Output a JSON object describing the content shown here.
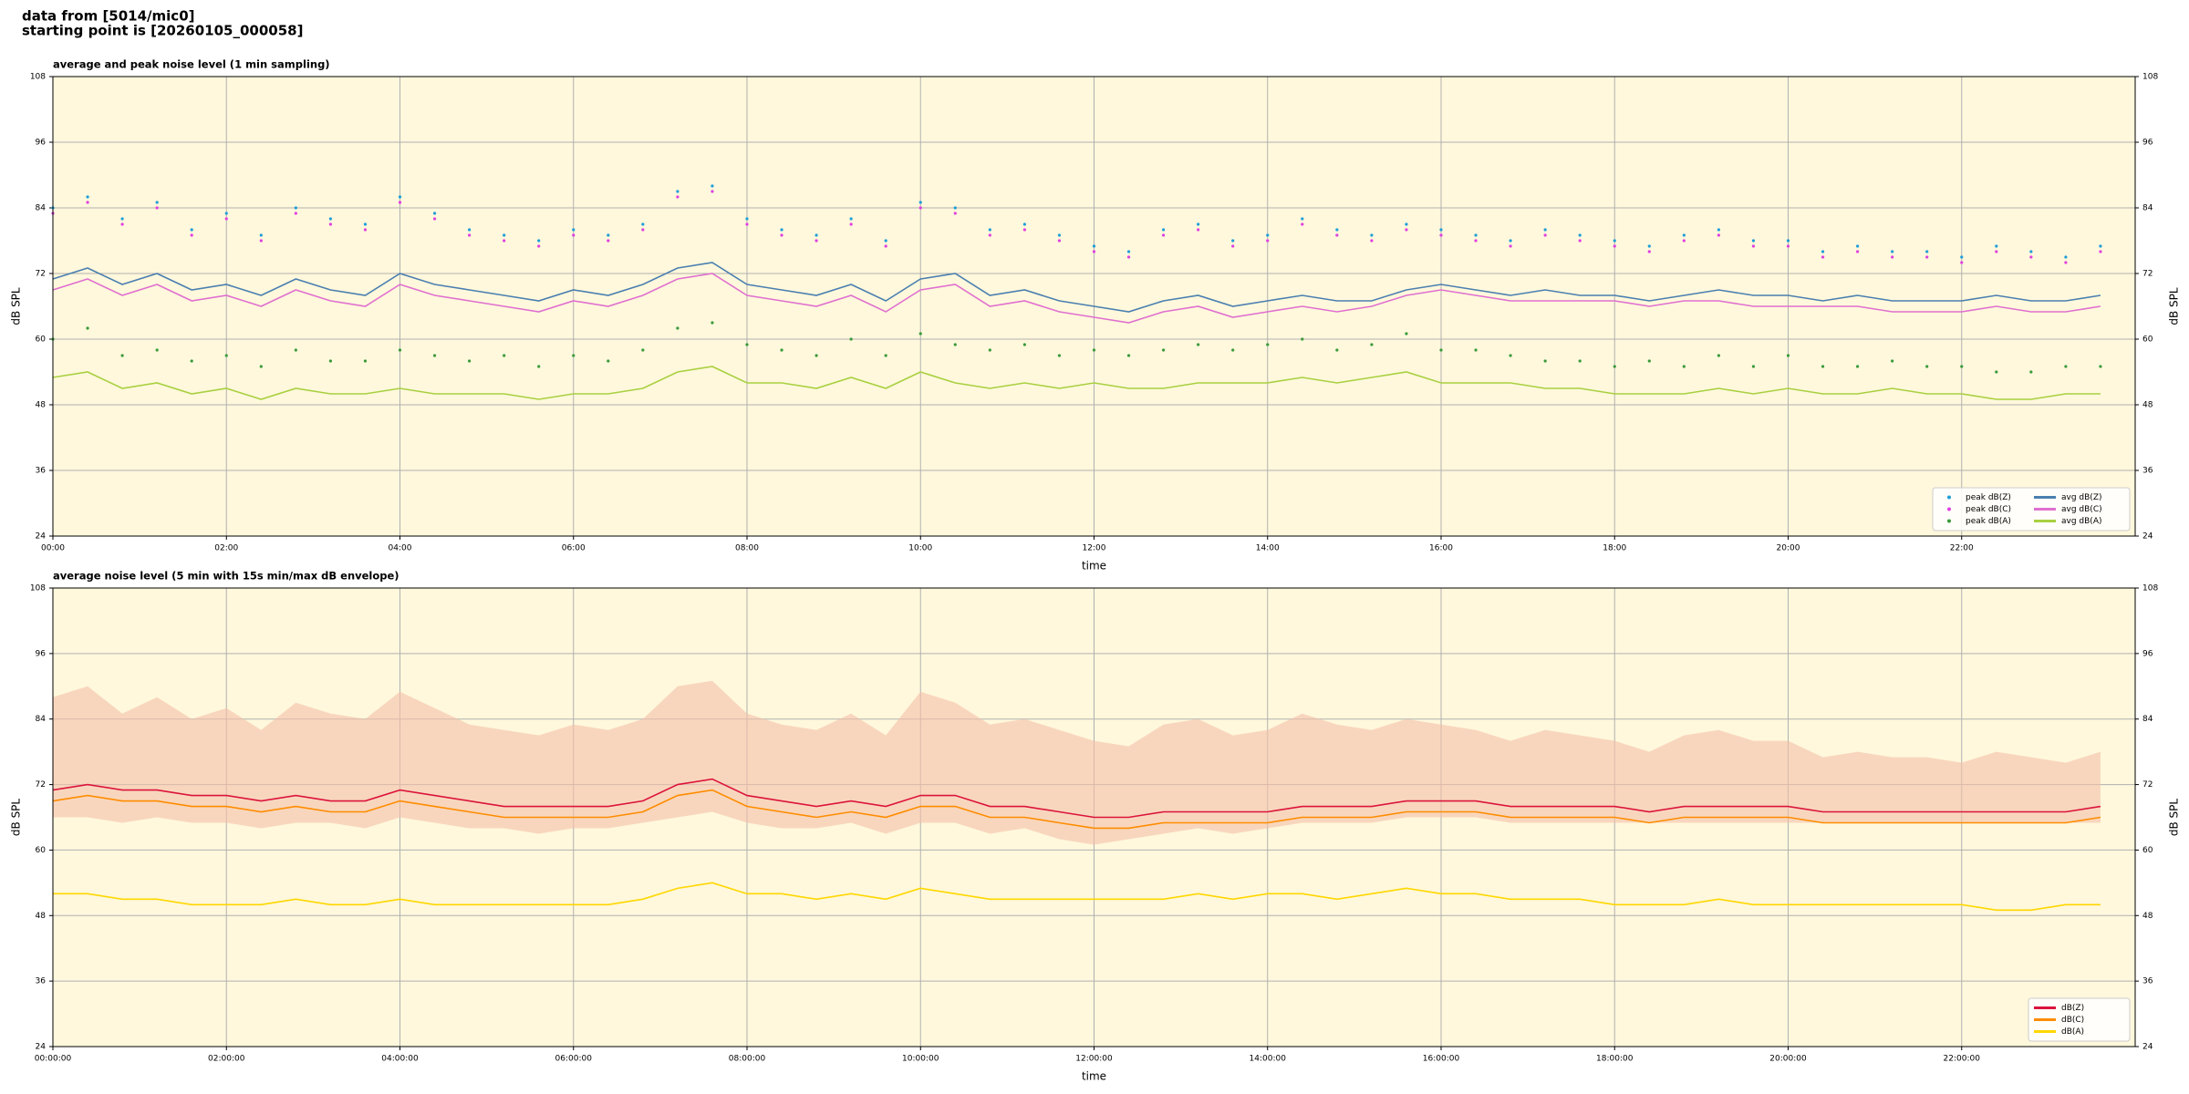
{
  "header": [
    "data from [5014/mic0]",
    "starting point is [20260105_000058]"
  ],
  "chart_data": [
    {
      "type": "line",
      "title": "average and peak noise level (1 min sampling)",
      "xlabel": "time",
      "ylabel": "dB SPL",
      "xlim": [
        0,
        24
      ],
      "ylim": [
        24,
        108
      ],
      "yticks": [
        24,
        36,
        48,
        60,
        72,
        84,
        96,
        108
      ],
      "xticks": [
        {
          "value": 0,
          "label": "00:00"
        },
        {
          "value": 2,
          "label": "02:00"
        },
        {
          "value": 4,
          "label": "04:00"
        },
        {
          "value": 6,
          "label": "06:00"
        },
        {
          "value": 8,
          "label": "08:00"
        },
        {
          "value": 10,
          "label": "10:00"
        },
        {
          "value": 12,
          "label": "12:00"
        },
        {
          "value": 14,
          "label": "14:00"
        },
        {
          "value": 16,
          "label": "16:00"
        },
        {
          "value": 18,
          "label": "18:00"
        },
        {
          "value": 20,
          "label": "20:00"
        },
        {
          "value": 22,
          "label": "22:00"
        }
      ],
      "grid": true,
      "legend": "lower right",
      "legend_columns": 2,
      "x": [
        0,
        0.4,
        0.8,
        1.2,
        1.6,
        2,
        2.4,
        2.8,
        3.2,
        3.6,
        4,
        4.4,
        4.8,
        5.2,
        5.6,
        6,
        6.4,
        6.8,
        7.2,
        7.6,
        8,
        8.4,
        8.8,
        9.2,
        9.6,
        10,
        10.4,
        10.8,
        11.2,
        11.6,
        12,
        12.4,
        12.8,
        13.2,
        13.6,
        14,
        14.4,
        14.8,
        15.2,
        15.6,
        16,
        16.4,
        16.8,
        17.2,
        17.6,
        18,
        18.4,
        18.8,
        19.2,
        19.6,
        20,
        20.4,
        20.8,
        21.2,
        21.6,
        22,
        22.4,
        22.8,
        23.2,
        23.6
      ],
      "series": [
        {
          "name": "peak dB(Z)",
          "type": "scatter",
          "color": "#1f9ed8",
          "values": [
            84,
            86,
            82,
            85,
            80,
            83,
            79,
            84,
            82,
            81,
            86,
            83,
            80,
            79,
            78,
            80,
            79,
            81,
            87,
            88,
            82,
            80,
            79,
            82,
            78,
            85,
            84,
            80,
            81,
            79,
            77,
            76,
            80,
            81,
            78,
            79,
            82,
            80,
            79,
            81,
            80,
            79,
            78,
            80,
            79,
            78,
            77,
            79,
            80,
            78,
            78,
            76,
            77,
            76,
            76,
            75,
            77,
            76,
            75,
            77
          ]
        },
        {
          "name": "peak dB(C)",
          "type": "scatter",
          "color": "#e040e0",
          "values": [
            83,
            85,
            81,
            84,
            79,
            82,
            78,
            83,
            81,
            80,
            85,
            82,
            79,
            78,
            77,
            79,
            78,
            80,
            86,
            87,
            81,
            79,
            78,
            81,
            77,
            84,
            83,
            79,
            80,
            78,
            76,
            75,
            79,
            80,
            77,
            78,
            81,
            79,
            78,
            80,
            79,
            78,
            77,
            79,
            78,
            77,
            76,
            78,
            79,
            77,
            77,
            75,
            76,
            75,
            75,
            74,
            76,
            75,
            74,
            76
          ]
        },
        {
          "name": "peak dB(A)",
          "type": "scatter",
          "color": "#3a9a3a",
          "values": [
            60,
            62,
            57,
            58,
            56,
            57,
            55,
            58,
            56,
            56,
            58,
            57,
            56,
            57,
            55,
            57,
            56,
            58,
            62,
            63,
            59,
            58,
            57,
            60,
            57,
            61,
            59,
            58,
            59,
            57,
            58,
            57,
            58,
            59,
            58,
            59,
            60,
            58,
            59,
            61,
            58,
            58,
            57,
            56,
            56,
            55,
            56,
            55,
            57,
            55,
            57,
            55,
            55,
            56,
            55,
            55,
            54,
            54,
            55,
            55
          ]
        },
        {
          "name": "avg dB(Z)",
          "type": "line",
          "color": "#4a7fb0",
          "values": [
            71,
            73,
            70,
            72,
            69,
            70,
            68,
            71,
            69,
            68,
            72,
            70,
            69,
            68,
            67,
            69,
            68,
            70,
            73,
            74,
            70,
            69,
            68,
            70,
            67,
            71,
            72,
            68,
            69,
            67,
            66,
            65,
            67,
            68,
            66,
            67,
            68,
            67,
            67,
            69,
            70,
            69,
            68,
            69,
            68,
            68,
            67,
            68,
            69,
            68,
            68,
            67,
            68,
            67,
            67,
            67,
            68,
            67,
            67,
            68
          ]
        },
        {
          "name": "avg dB(C)",
          "type": "line",
          "color": "#e070d0",
          "values": [
            69,
            71,
            68,
            70,
            67,
            68,
            66,
            69,
            67,
            66,
            70,
            68,
            67,
            66,
            65,
            67,
            66,
            68,
            71,
            72,
            68,
            67,
            66,
            68,
            65,
            69,
            70,
            66,
            67,
            65,
            64,
            63,
            65,
            66,
            64,
            65,
            66,
            65,
            66,
            68,
            69,
            68,
            67,
            67,
            67,
            67,
            66,
            67,
            67,
            66,
            66,
            66,
            66,
            65,
            65,
            65,
            66,
            65,
            65,
            66
          ]
        },
        {
          "name": "avg dB(A)",
          "type": "line",
          "color": "#a8d040",
          "values": [
            53,
            54,
            51,
            52,
            50,
            51,
            49,
            51,
            50,
            50,
            51,
            50,
            50,
            50,
            49,
            50,
            50,
            51,
            54,
            55,
            52,
            52,
            51,
            53,
            51,
            54,
            52,
            51,
            52,
            51,
            52,
            51,
            51,
            52,
            52,
            52,
            53,
            52,
            53,
            54,
            52,
            52,
            52,
            51,
            51,
            50,
            50,
            50,
            51,
            50,
            51,
            50,
            50,
            51,
            50,
            50,
            49,
            49,
            50,
            50
          ]
        }
      ]
    },
    {
      "type": "line",
      "title": "average noise level (5 min with 15s min/max dB envelope)",
      "xlabel": "time",
      "ylabel": "dB SPL",
      "xlim": [
        0,
        24
      ],
      "ylim": [
        24,
        108
      ],
      "yticks": [
        24,
        36,
        48,
        60,
        72,
        84,
        96,
        108
      ],
      "xticks": [
        {
          "value": 0,
          "label": "00:00:00"
        },
        {
          "value": 2,
          "label": "02:00:00"
        },
        {
          "value": 4,
          "label": "04:00:00"
        },
        {
          "value": 6,
          "label": "06:00:00"
        },
        {
          "value": 8,
          "label": "08:00:00"
        },
        {
          "value": 10,
          "label": "10:00:00"
        },
        {
          "value": 12,
          "label": "12:00:00"
        },
        {
          "value": 14,
          "label": "14:00:00"
        },
        {
          "value": 16,
          "label": "16:00:00"
        },
        {
          "value": 18,
          "label": "18:00:00"
        },
        {
          "value": 20,
          "label": "20:00:00"
        },
        {
          "value": 22,
          "label": "22:00:00"
        }
      ],
      "grid": true,
      "legend": "lower right",
      "legend_columns": 1,
      "x": [
        0,
        0.4,
        0.8,
        1.2,
        1.6,
        2,
        2.4,
        2.8,
        3.2,
        3.6,
        4,
        4.4,
        4.8,
        5.2,
        5.6,
        6,
        6.4,
        6.8,
        7.2,
        7.6,
        8,
        8.4,
        8.8,
        9.2,
        9.6,
        10,
        10.4,
        10.8,
        11.2,
        11.6,
        12,
        12.4,
        12.8,
        13.2,
        13.6,
        14,
        14.4,
        14.8,
        15.2,
        15.6,
        16,
        16.4,
        16.8,
        17.2,
        17.6,
        18,
        18.4,
        18.8,
        19.2,
        19.6,
        20,
        20.4,
        20.8,
        21.2,
        21.6,
        22,
        22.4,
        22.8,
        23.2,
        23.6
      ],
      "envelope": {
        "color": "#f4c0a8",
        "low": [
          66,
          66,
          65,
          66,
          65,
          65,
          64,
          65,
          65,
          64,
          66,
          65,
          64,
          64,
          63,
          64,
          64,
          65,
          66,
          67,
          65,
          64,
          64,
          65,
          63,
          65,
          65,
          63,
          64,
          62,
          61,
          62,
          63,
          64,
          63,
          64,
          65,
          65,
          65,
          66,
          66,
          66,
          65,
          65,
          65,
          65,
          65,
          65,
          65,
          65,
          65,
          65,
          65,
          65,
          65,
          65,
          65,
          65,
          65,
          65
        ],
        "high": [
          88,
          90,
          85,
          88,
          84,
          86,
          82,
          87,
          85,
          84,
          89,
          86,
          83,
          82,
          81,
          83,
          82,
          84,
          90,
          91,
          85,
          83,
          82,
          85,
          81,
          89,
          87,
          83,
          84,
          82,
          80,
          79,
          83,
          84,
          81,
          82,
          85,
          83,
          82,
          84,
          83,
          82,
          80,
          82,
          81,
          80,
          78,
          81,
          82,
          80,
          80,
          77,
          78,
          77,
          77,
          76,
          78,
          77,
          76,
          78
        ]
      },
      "series": [
        {
          "name": "dB(Z)",
          "type": "line",
          "color": "#dc143c",
          "values": [
            71,
            72,
            71,
            71,
            70,
            70,
            69,
            70,
            69,
            69,
            71,
            70,
            69,
            68,
            68,
            68,
            68,
            69,
            72,
            73,
            70,
            69,
            68,
            69,
            68,
            70,
            70,
            68,
            68,
            67,
            66,
            66,
            67,
            67,
            67,
            67,
            68,
            68,
            68,
            69,
            69,
            69,
            68,
            68,
            68,
            68,
            67,
            68,
            68,
            68,
            68,
            67,
            67,
            67,
            67,
            67,
            67,
            67,
            67,
            68
          ]
        },
        {
          "name": "dB(C)",
          "type": "line",
          "color": "#ff8c00",
          "values": [
            69,
            70,
            69,
            69,
            68,
            68,
            67,
            68,
            67,
            67,
            69,
            68,
            67,
            66,
            66,
            66,
            66,
            67,
            70,
            71,
            68,
            67,
            66,
            67,
            66,
            68,
            68,
            66,
            66,
            65,
            64,
            64,
            65,
            65,
            65,
            65,
            66,
            66,
            66,
            67,
            67,
            67,
            66,
            66,
            66,
            66,
            65,
            66,
            66,
            66,
            66,
            65,
            65,
            65,
            65,
            65,
            65,
            65,
            65,
            66
          ]
        },
        {
          "name": "dB(A)",
          "type": "line",
          "color": "#ffd700",
          "values": [
            52,
            52,
            51,
            51,
            50,
            50,
            50,
            51,
            50,
            50,
            51,
            50,
            50,
            50,
            50,
            50,
            50,
            51,
            53,
            54,
            52,
            52,
            51,
            52,
            51,
            53,
            52,
            51,
            51,
            51,
            51,
            51,
            51,
            52,
            51,
            52,
            52,
            51,
            52,
            53,
            52,
            52,
            51,
            51,
            51,
            50,
            50,
            50,
            51,
            50,
            50,
            50,
            50,
            50,
            50,
            50,
            49,
            49,
            50,
            50
          ]
        }
      ]
    }
  ]
}
